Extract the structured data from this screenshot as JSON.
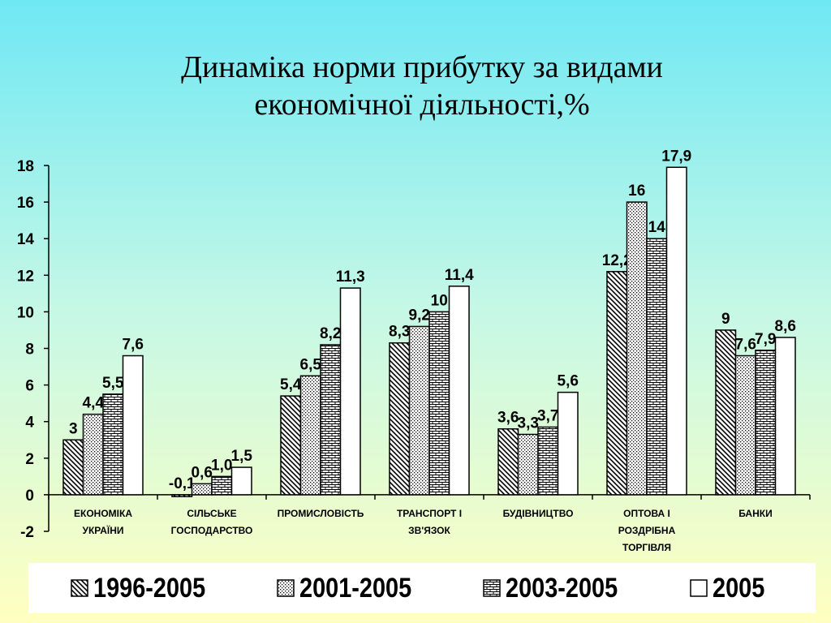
{
  "title_lines": [
    "Динаміка норми прибутку за видами",
    "економічної діяльності,%"
  ],
  "chart_data": {
    "type": "bar",
    "title": "Динаміка норми прибутку за видами економічної діяльності,%",
    "categories": [
      [
        "ЕКОНОМІКА",
        "УКРАЇНИ"
      ],
      [
        "СІЛЬСЬКЕ",
        "ГОСПОДАРСТВО"
      ],
      [
        "ПРОМИСЛОВІСТЬ"
      ],
      [
        "ТРАНСПОРТ І",
        "ЗВ'ЯЗОК"
      ],
      [
        "БУДІВНИЦТВО"
      ],
      [
        "ОПТОВА І",
        "РОЗДРІБНА",
        "ТОРГІВЛЯ"
      ],
      [
        "БАНКИ"
      ]
    ],
    "series": [
      {
        "name": "1996-2005",
        "pattern": "diagonal",
        "values": [
          3,
          -0.1,
          5.4,
          8.3,
          3.6,
          12.2,
          9
        ],
        "labels": [
          "3",
          "-0,1",
          "5,4",
          "8,3",
          "3,6",
          "12,2",
          "9"
        ]
      },
      {
        "name": "2001-2005",
        "pattern": "dots",
        "values": [
          4.4,
          0.6,
          6.5,
          9.2,
          3.3,
          16,
          7.6
        ],
        "labels": [
          "4,4",
          "0,6",
          "6,5",
          "9,2",
          "3,3",
          "16",
          "7,6"
        ]
      },
      {
        "name": "2003-2005",
        "pattern": "bricks",
        "values": [
          5.5,
          1.0,
          8.2,
          10,
          3.7,
          14,
          7.9
        ],
        "labels": [
          "5,5",
          "1,0",
          "8,2",
          "10",
          "3,7",
          "14",
          "7,9"
        ]
      },
      {
        "name": "2005",
        "pattern": "solid-white",
        "values": [
          7.6,
          1.5,
          11.3,
          11.4,
          5.6,
          17.9,
          8.6
        ],
        "labels": [
          "7,6",
          "1,5",
          "11,3",
          "11,4",
          "5,6",
          "17,9",
          "8,6"
        ]
      }
    ],
    "ylim": [
      -2,
      18
    ],
    "yticks": [
      -2,
      0,
      2,
      4,
      6,
      8,
      10,
      12,
      14,
      16,
      18
    ],
    "legend_position": "bottom",
    "grid": false
  }
}
